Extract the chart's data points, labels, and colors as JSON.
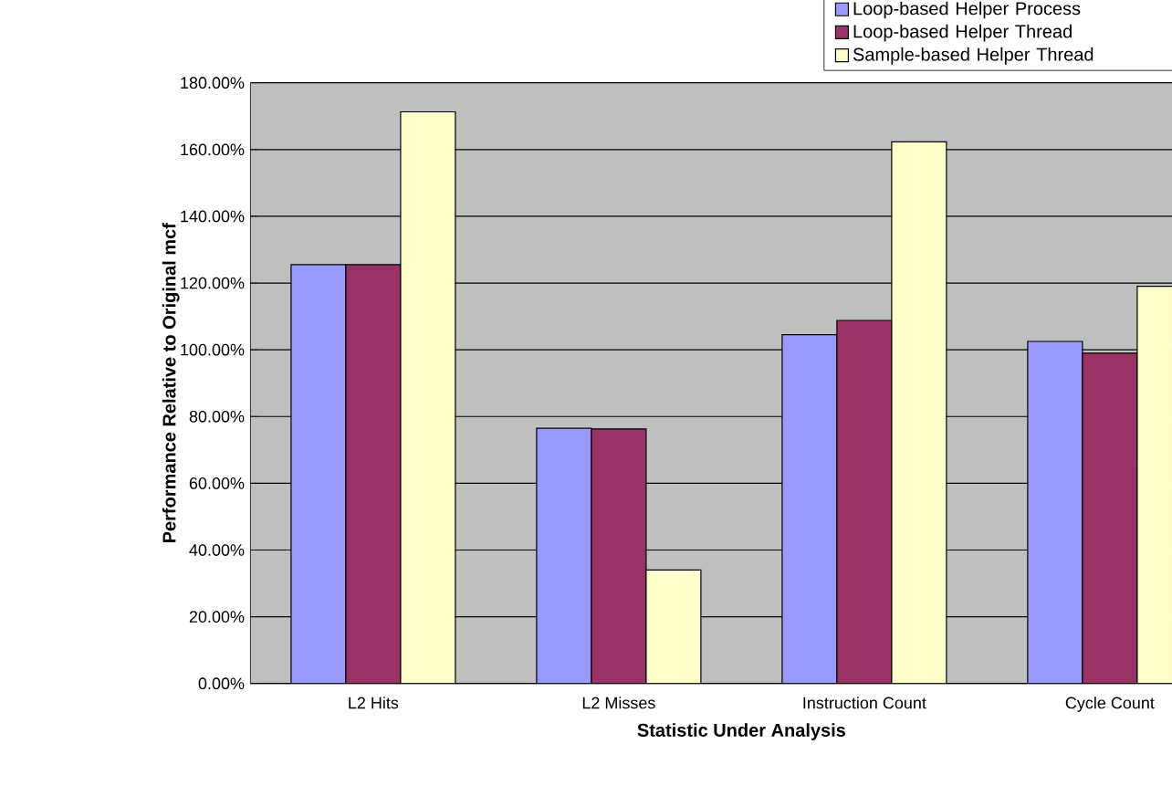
{
  "chart_data": {
    "type": "bar",
    "xlabel": "Statistic Under Analysis",
    "ylabel": "Performance Relative to Original mcf",
    "categories": [
      "L2 Hits",
      "L2 Misses",
      "Instruction Count",
      "Cycle Count"
    ],
    "series": [
      {
        "name": "Loop-based Helper Process",
        "color": "#9999ff",
        "values": [
          125.5,
          76.5,
          104.5,
          102.5
        ]
      },
      {
        "name": "Loop-based Helper Thread",
        "color": "#993366",
        "values": [
          125.5,
          76.3,
          108.8,
          99
        ]
      },
      {
        "name": "Sample-based Helper Thread",
        "color": "#ffffcc",
        "values": [
          171.3,
          34,
          162.3,
          119
        ]
      }
    ],
    "ylim": [
      0,
      180
    ],
    "yticks": [
      {
        "value": 0,
        "label": "0.00%"
      },
      {
        "value": 20,
        "label": "20.00%"
      },
      {
        "value": 40,
        "label": "40.00%"
      },
      {
        "value": 60,
        "label": "60.00%"
      },
      {
        "value": 80,
        "label": "80.00%"
      },
      {
        "value": 100,
        "label": "100.00%"
      },
      {
        "value": 120,
        "label": "120.00%"
      },
      {
        "value": 140,
        "label": "140.00%"
      },
      {
        "value": 160,
        "label": "160.00%"
      },
      {
        "value": 180,
        "label": "180.00%"
      }
    ],
    "grid": "y",
    "legend": "top right"
  }
}
